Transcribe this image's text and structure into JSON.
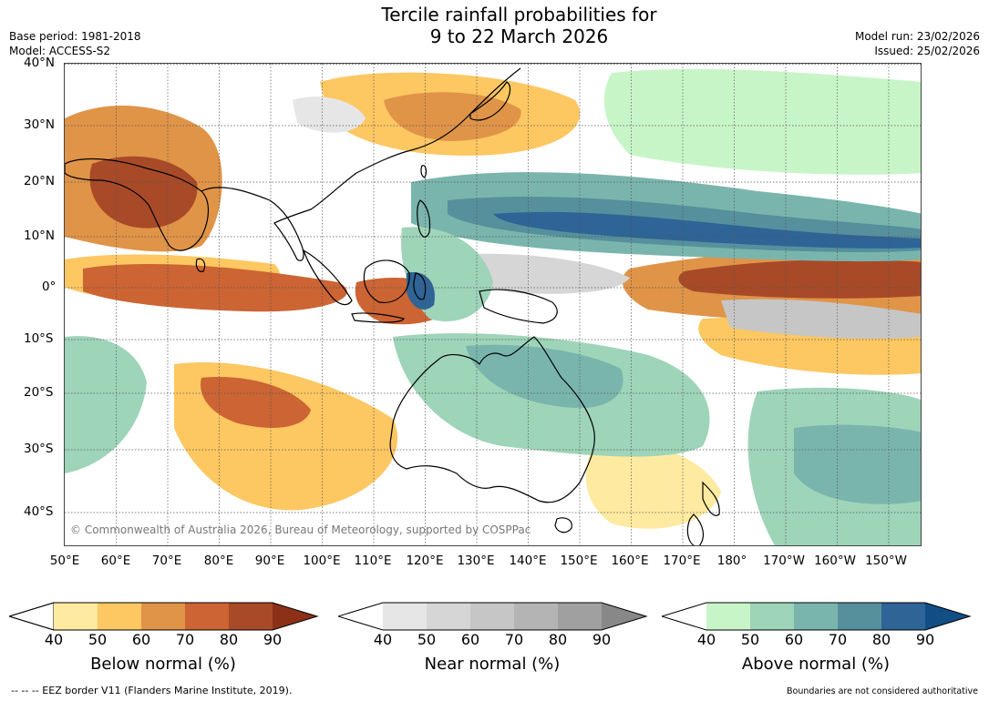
{
  "title": {
    "line1": "Tercile rainfall probabilities for",
    "line2": "9 to 22 March 2026"
  },
  "meta": {
    "base_period": "Base period: 1981-2018",
    "model": "Model: ACCESS-S2",
    "model_run": "Model run: 23/02/2026",
    "issued": "Issued: 25/02/2026"
  },
  "map": {
    "latitude_labels": [
      "40°N",
      "30°N",
      "20°N",
      "10°N",
      "0°",
      "10°S",
      "20°S",
      "30°S",
      "40°S"
    ],
    "longitude_labels": [
      "50°E",
      "60°E",
      "70°E",
      "80°E",
      "90°E",
      "100°E",
      "110°E",
      "120°E",
      "130°E",
      "140°E",
      "150°E",
      "160°E",
      "170°E",
      "180°",
      "170°W",
      "160°W",
      "150°W"
    ],
    "copyright": "© Commonwealth of Australia 2026, Bureau of Meteorology, supported by COSPPac"
  },
  "legend": {
    "below": {
      "title": "Below normal (%)",
      "ticks": [
        "40",
        "50",
        "60",
        "70",
        "80",
        "90"
      ],
      "colors": [
        "#ffffff",
        "#feeaa0",
        "#fdc762",
        "#e09448",
        "#cc6433",
        "#a84a28",
        "#8c3118"
      ]
    },
    "near": {
      "title": "Near normal (%)",
      "ticks": [
        "40",
        "50",
        "60",
        "70",
        "80",
        "90"
      ],
      "colors": [
        "#ffffff",
        "#e6e6e6",
        "#d6d6d6",
        "#c6c6c6",
        "#b4b4b4",
        "#a0a0a0",
        "#888888"
      ]
    },
    "above": {
      "title": "Above normal (%)",
      "ticks": [
        "40",
        "50",
        "60",
        "70",
        "80",
        "90"
      ],
      "colors": [
        "#ffffff",
        "#c8f5c8",
        "#9ed4b8",
        "#7ab5ad",
        "#56909c",
        "#2e6496",
        "#124e86"
      ]
    }
  },
  "footer": {
    "eez": "--  --  -- EEZ border V11 (Flanders Marine Institute, 2019).",
    "disclaimer": "Boundaries are not considered authoritative"
  }
}
